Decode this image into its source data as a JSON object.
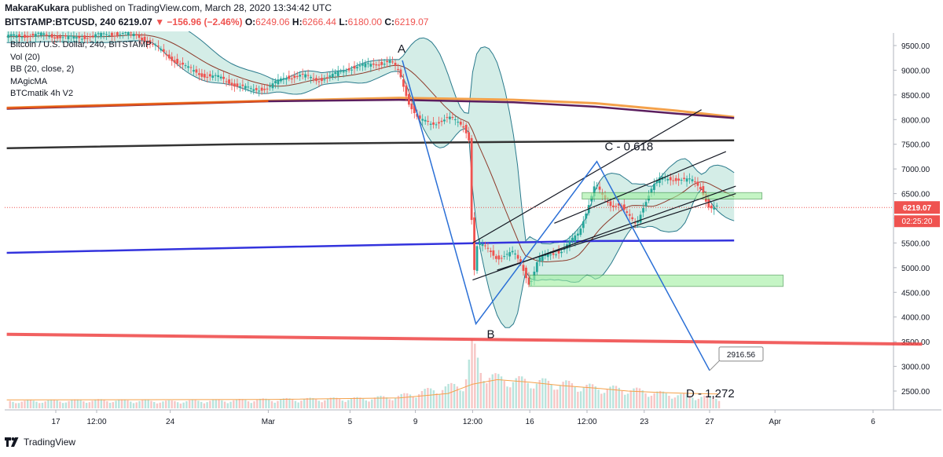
{
  "header": {
    "author": "MakaraKukara",
    "published": "published on TradingView.com, March 28, 2020 13:34:42 UTC",
    "symbol": "BITSTAMP:BTCUSD, 240",
    "last": "6219.07",
    "change": "▼ −156.96 (−2.46%)",
    "o_label": "O:",
    "o": "6249.06",
    "h_label": "H:",
    "h": "6266.44",
    "l_label": "L:",
    "l": "6180.00",
    "c_label": "C:",
    "c": "6219.07"
  },
  "legend": {
    "series": "Bitcoin / U.S. Dollar, 240, BITSTAMP",
    "vol": "Vol (20)",
    "bb": "BB (20, close, 2)",
    "magic": "MAgicMA",
    "btcmatik": "BTCmatik 4h V2"
  },
  "footer": {
    "brand": "TradingView"
  },
  "colors": {
    "up": "#26a69a",
    "down": "#ef5350",
    "bb": "#2a7a8c",
    "bb_fill": "#9fd8c9",
    "ma_brown": "#8d3a2a",
    "pattern": "#2a6fd6",
    "channel": "#131722",
    "blue_ma": "#3333dd",
    "red_ma": "#ef4444",
    "orange_ma": "#f4a14a",
    "purple_ma": "#5b1e5e",
    "zone": "#9ff0a0",
    "price_label_bg": "#ef5350"
  },
  "chart_data": {
    "type": "candlestick",
    "ylim": [
      2100,
      9800
    ],
    "y_ticks": [
      "9500.00",
      "9000.00",
      "8500.00",
      "8000.00",
      "7500.00",
      "7000.00",
      "6500.00",
      "6000.00",
      "5500.00",
      "5000.00",
      "4500.00",
      "4000.00",
      "3500.00",
      "3000.00",
      "2500.00"
    ],
    "x_ticks": [
      {
        "label": "17",
        "day": 17
      },
      {
        "label": "12:00",
        "day": 19.5
      },
      {
        "label": "24",
        "day": 24
      },
      {
        "label": "Mar",
        "day": 30
      },
      {
        "label": "5",
        "day": 35
      },
      {
        "label": "9",
        "day": 39
      },
      {
        "label": "12:00",
        "day": 42.5
      },
      {
        "label": "16",
        "day": 46
      },
      {
        "label": "12:00",
        "day": 49.5
      },
      {
        "label": "23",
        "day": 53
      },
      {
        "label": "27",
        "day": 57
      },
      {
        "label": "Apr",
        "day": 61
      },
      {
        "label": "6",
        "day": 67
      }
    ],
    "close_profile": [
      [
        14,
        9680
      ],
      [
        16,
        9720
      ],
      [
        18,
        9650
      ],
      [
        20,
        9720
      ],
      [
        21,
        9750
      ],
      [
        22,
        9700
      ],
      [
        23,
        9500
      ],
      [
        24,
        9250
      ],
      [
        25,
        9050
      ],
      [
        26,
        8900
      ],
      [
        27,
        8850
      ],
      [
        28,
        8700
      ],
      [
        29,
        8600
      ],
      [
        30,
        8650
      ],
      [
        31,
        8850
      ],
      [
        32,
        8900
      ],
      [
        33,
        8800
      ],
      [
        34,
        8900
      ],
      [
        35,
        9050
      ],
      [
        36,
        9100
      ],
      [
        37,
        9150
      ],
      [
        37.5,
        9180
      ],
      [
        38,
        8950
      ],
      [
        38.6,
        8350
      ],
      [
        39.2,
        8000
      ],
      [
        40,
        7900
      ],
      [
        41,
        8050
      ],
      [
        42,
        7850
      ],
      [
        42.3,
        7600
      ],
      [
        42.5,
        5300
      ],
      [
        42.6,
        4950
      ],
      [
        42.8,
        5500
      ],
      [
        43.5,
        5350
      ],
      [
        44,
        5200
      ],
      [
        45,
        5300
      ],
      [
        45.5,
        5050
      ],
      [
        46,
        4650
      ],
      [
        46.5,
        5150
      ],
      [
        47,
        5250
      ],
      [
        48,
        5350
      ],
      [
        49,
        5700
      ],
      [
        49.5,
        6200
      ],
      [
        50,
        6700
      ],
      [
        50.5,
        6400
      ],
      [
        51,
        6250
      ],
      [
        51.5,
        6300
      ],
      [
        52,
        6050
      ],
      [
        52.5,
        5850
      ],
      [
        53,
        6300
      ],
      [
        53.5,
        6650
      ],
      [
        54,
        6800
      ],
      [
        55,
        6800
      ],
      [
        56,
        6750
      ],
      [
        56.5,
        6600
      ],
      [
        57,
        6200
      ],
      [
        57.5,
        6219
      ]
    ],
    "volume_profile": [
      [
        14,
        120
      ],
      [
        20,
        140
      ],
      [
        24,
        120
      ],
      [
        30,
        150
      ],
      [
        36,
        170
      ],
      [
        38,
        210
      ],
      [
        40,
        320
      ],
      [
        42,
        420
      ],
      [
        42.5,
        1100
      ],
      [
        43,
        650
      ],
      [
        44,
        520
      ],
      [
        46,
        470
      ],
      [
        48,
        430
      ],
      [
        50,
        360
      ],
      [
        52,
        330
      ],
      [
        54,
        260
      ],
      [
        56,
        210
      ],
      [
        57.5,
        190
      ]
    ],
    "vol_ma_profile": [
      [
        14,
        2320
      ],
      [
        30,
        2330
      ],
      [
        38,
        2360
      ],
      [
        41,
        2450
      ],
      [
        42.5,
        2640
      ],
      [
        44,
        2730
      ],
      [
        46,
        2680
      ],
      [
        48,
        2610
      ],
      [
        50,
        2560
      ],
      [
        52,
        2500
      ],
      [
        54,
        2470
      ],
      [
        56,
        2450
      ],
      [
        57.5,
        2440
      ]
    ],
    "overlays": {
      "orange_ma": [
        [
          14,
          8240
        ],
        [
          30,
          8380
        ],
        [
          38,
          8440
        ],
        [
          45,
          8400
        ],
        [
          50,
          8330
        ],
        [
          55,
          8180
        ],
        [
          58.5,
          8050
        ]
      ],
      "purple_ma": [
        [
          14,
          8220
        ],
        [
          30,
          8370
        ],
        [
          38,
          8400
        ],
        [
          45,
          8350
        ],
        [
          50,
          8260
        ],
        [
          55,
          8120
        ],
        [
          58.5,
          8030
        ]
      ],
      "black_ma": [
        [
          14,
          7420
        ],
        [
          28,
          7500
        ],
        [
          42,
          7540
        ],
        [
          58.5,
          7580
        ]
      ],
      "blue_ma": [
        [
          14,
          5300
        ],
        [
          28,
          5400
        ],
        [
          40,
          5480
        ],
        [
          50,
          5540
        ],
        [
          58.5,
          5550
        ]
      ],
      "red_ma": [
        [
          14,
          3650
        ],
        [
          70,
          3450
        ]
      ]
    },
    "pattern": {
      "points": [
        {
          "label": "A",
          "day": 38.2,
          "price": 9200
        },
        {
          "label": "B",
          "day": 42.7,
          "price": 3860
        },
        {
          "label": "C - 0.618",
          "day": 50.1,
          "price": 7150
        },
        {
          "label": "D - 1,272",
          "day": 57.0,
          "price": 2916.56
        }
      ],
      "d_value": "2916.56"
    },
    "channel": {
      "lower": [
        [
          42.5,
          4750
        ],
        [
          58.6,
          6650
        ]
      ],
      "middle": [
        [
          44,
          4950
        ],
        [
          58.6,
          6500
        ]
      ],
      "upper": [
        [
          42.5,
          5500
        ],
        [
          56.5,
          8200
        ]
      ],
      "upper2": [
        [
          47.5,
          5900
        ],
        [
          58,
          7350
        ]
      ]
    },
    "zones": [
      {
        "d0": 49.2,
        "d1": 60.2,
        "p0": 6390,
        "p1": 6520
      },
      {
        "d0": 46.0,
        "d1": 61.5,
        "p0": 4620,
        "p1": 4850
      }
    ],
    "current_price": "6219.07",
    "countdown": "02:25:20"
  }
}
